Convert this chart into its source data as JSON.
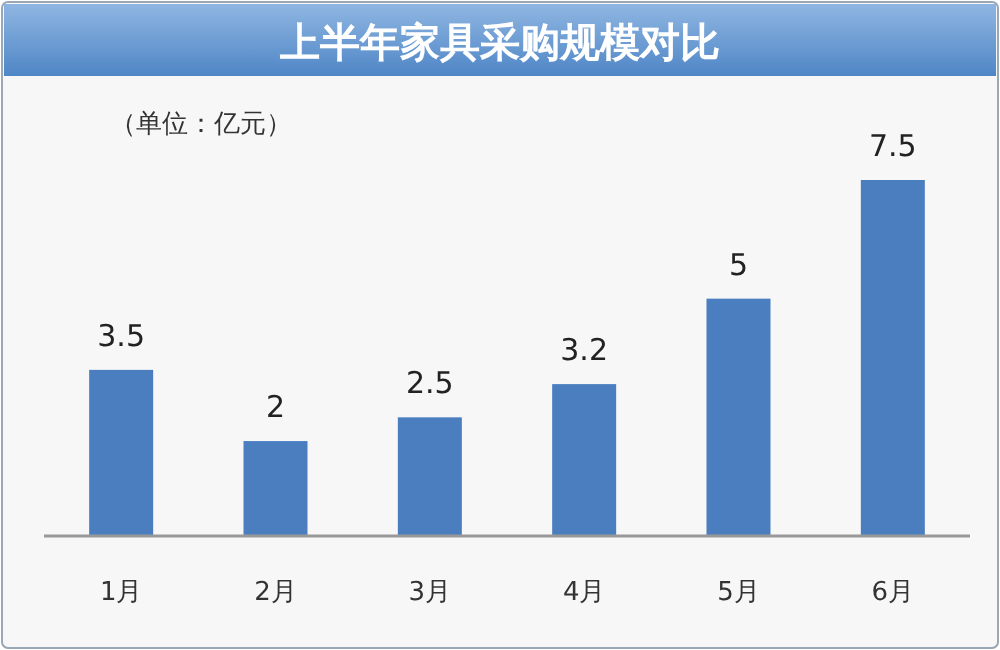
{
  "chart_data": {
    "type": "bar",
    "title": "上半年家具采购规模对比",
    "annotations": [
      "（单位：亿元）"
    ],
    "categories": [
      "1月",
      "2月",
      "3月",
      "4月",
      "5月",
      "6月"
    ],
    "values": [
      3.5,
      2,
      2.5,
      3.2,
      5,
      7.5
    ],
    "color": "#4a7ebf",
    "data_labels": true
  }
}
